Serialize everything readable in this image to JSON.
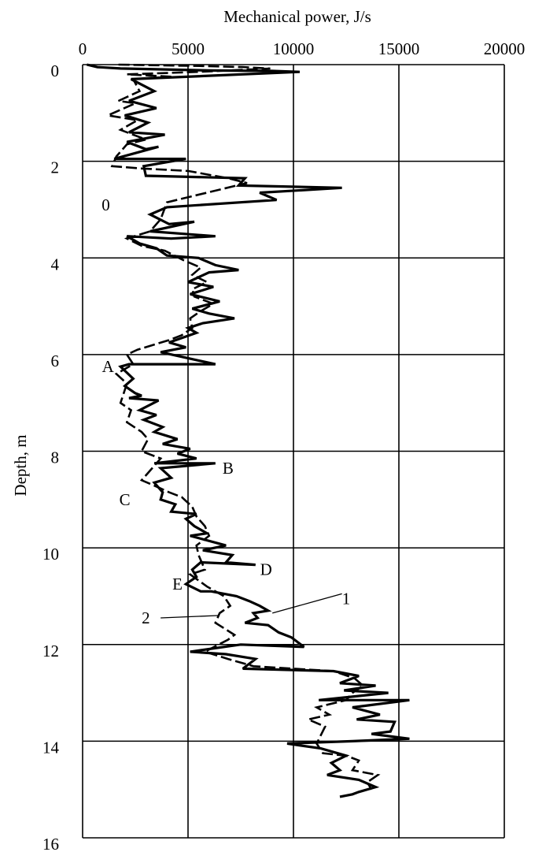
{
  "chart_data": {
    "type": "line",
    "title": "",
    "xlabel": "Mechanical power, J/s",
    "ylabel": "Depth, m",
    "xlim": [
      0,
      20000
    ],
    "ylim": [
      16,
      0
    ],
    "x_ticks": [
      0,
      5000,
      10000,
      15000,
      20000
    ],
    "y_ticks": [
      0,
      2,
      4,
      6,
      8,
      10,
      12,
      14,
      16
    ],
    "grid": true,
    "series": [
      {
        "name": "1",
        "style": "solid",
        "points": [
          [
            200,
            0
          ],
          [
            700,
            0.05
          ],
          [
            1800,
            0.08
          ],
          [
            6000,
            0.12
          ],
          [
            9000,
            0.13
          ],
          [
            10300,
            0.15
          ],
          [
            2300,
            0.3
          ],
          [
            3400,
            0.55
          ],
          [
            2200,
            0.75
          ],
          [
            3500,
            0.9
          ],
          [
            2000,
            1.05
          ],
          [
            3100,
            1.2
          ],
          [
            2200,
            1.4
          ],
          [
            3900,
            1.45
          ],
          [
            2100,
            1.6
          ],
          [
            3000,
            1.75
          ],
          [
            3600,
            1.7
          ],
          [
            1500,
            1.95
          ],
          [
            4900,
            1.95
          ],
          [
            2900,
            2.1
          ],
          [
            3000,
            2.3
          ],
          [
            7700,
            2.35
          ],
          [
            7400,
            2.5
          ],
          [
            12300,
            2.55
          ],
          [
            8400,
            2.65
          ],
          [
            9200,
            2.8
          ],
          [
            4000,
            2.95
          ],
          [
            3200,
            3.1
          ],
          [
            4100,
            3.3
          ],
          [
            5300,
            3.25
          ],
          [
            3200,
            3.45
          ],
          [
            6300,
            3.55
          ],
          [
            4200,
            3.6
          ],
          [
            2100,
            3.55
          ],
          [
            2700,
            3.7
          ],
          [
            3500,
            3.8
          ],
          [
            4000,
            3.95
          ],
          [
            5500,
            4.0
          ],
          [
            6300,
            4.15
          ],
          [
            7400,
            4.25
          ],
          [
            6000,
            4.3
          ],
          [
            5000,
            4.5
          ],
          [
            6200,
            4.6
          ],
          [
            5100,
            4.75
          ],
          [
            6500,
            4.9
          ],
          [
            5200,
            5.05
          ],
          [
            6000,
            5.15
          ],
          [
            7200,
            5.25
          ],
          [
            5700,
            5.35
          ],
          [
            5000,
            5.45
          ],
          [
            5400,
            5.55
          ],
          [
            4100,
            5.75
          ],
          [
            4900,
            5.85
          ],
          [
            3700,
            5.95
          ],
          [
            6300,
            6.2
          ],
          [
            2200,
            6.2
          ],
          [
            1800,
            6.25
          ],
          [
            2400,
            6.5
          ],
          [
            2000,
            6.65
          ],
          [
            2500,
            6.8
          ],
          [
            2800,
            6.85
          ],
          [
            2200,
            6.9
          ],
          [
            3600,
            6.95
          ],
          [
            2700,
            7.15
          ],
          [
            3500,
            7.25
          ],
          [
            2900,
            7.35
          ],
          [
            3800,
            7.5
          ],
          [
            3400,
            7.6
          ],
          [
            4500,
            7.75
          ],
          [
            3800,
            7.85
          ],
          [
            5100,
            7.95
          ],
          [
            4500,
            8.05
          ],
          [
            5400,
            8.15
          ],
          [
            3400,
            8.25
          ],
          [
            6300,
            8.25
          ],
          [
            3700,
            8.35
          ],
          [
            4200,
            8.55
          ],
          [
            3400,
            8.65
          ],
          [
            3800,
            8.85
          ],
          [
            3700,
            9.0
          ],
          [
            4400,
            9.1
          ],
          [
            4200,
            9.25
          ],
          [
            5400,
            9.3
          ],
          [
            4900,
            9.4
          ],
          [
            5300,
            9.55
          ],
          [
            5900,
            9.7
          ],
          [
            5100,
            9.75
          ],
          [
            6800,
            9.95
          ],
          [
            5700,
            10.05
          ],
          [
            7100,
            10.15
          ],
          [
            6800,
            10.3
          ],
          [
            8200,
            10.35
          ],
          [
            5600,
            10.3
          ],
          [
            5200,
            10.45
          ],
          [
            5400,
            10.6
          ],
          [
            4900,
            10.75
          ],
          [
            5600,
            10.9
          ],
          [
            6100,
            10.9
          ],
          [
            7300,
            11.0
          ],
          [
            7900,
            11.1
          ],
          [
            8400,
            11.2
          ],
          [
            8800,
            11.3
          ],
          [
            8100,
            11.35
          ],
          [
            8300,
            11.45
          ],
          [
            7700,
            11.55
          ],
          [
            8800,
            11.6
          ],
          [
            9300,
            11.75
          ],
          [
            9900,
            11.85
          ],
          [
            10500,
            12.05
          ],
          [
            7500,
            12.0
          ],
          [
            5100,
            12.15
          ],
          [
            6800,
            12.2
          ],
          [
            8200,
            12.3
          ],
          [
            7600,
            12.5
          ],
          [
            11900,
            12.55
          ],
          [
            13100,
            12.65
          ],
          [
            12200,
            12.8
          ],
          [
            13900,
            12.85
          ],
          [
            12400,
            12.95
          ],
          [
            14500,
            13.0
          ],
          [
            11200,
            13.15
          ],
          [
            15500,
            13.15
          ],
          [
            12800,
            13.3
          ],
          [
            14100,
            13.45
          ],
          [
            13000,
            13.55
          ],
          [
            14800,
            13.6
          ],
          [
            14600,
            13.8
          ],
          [
            13700,
            13.85
          ],
          [
            15500,
            13.95
          ],
          [
            12800,
            14.0
          ],
          [
            9700,
            14.05
          ],
          [
            11300,
            14.15
          ],
          [
            12500,
            14.3
          ],
          [
            11800,
            14.45
          ],
          [
            12200,
            14.6
          ],
          [
            11600,
            14.7
          ],
          [
            13100,
            14.8
          ],
          [
            13900,
            14.95
          ],
          [
            13100,
            15.05
          ],
          [
            12800,
            15.1
          ],
          [
            12200,
            15.15
          ]
        ]
      },
      {
        "name": "2",
        "style": "dashed",
        "points": [
          [
            1700,
            0
          ],
          [
            5700,
            0.03
          ],
          [
            7600,
            0.05
          ],
          [
            8900,
            0.08
          ],
          [
            5500,
            0.15
          ],
          [
            2100,
            0.2
          ],
          [
            4200,
            0.25
          ],
          [
            2400,
            0.3
          ],
          [
            2700,
            0.55
          ],
          [
            1700,
            0.75
          ],
          [
            2500,
            0.8
          ],
          [
            1200,
            1.05
          ],
          [
            2600,
            1.15
          ],
          [
            1800,
            1.35
          ],
          [
            3000,
            1.55
          ],
          [
            2100,
            1.65
          ],
          [
            1600,
            1.9
          ],
          [
            1400,
            2.1
          ],
          [
            2800,
            2.15
          ],
          [
            5000,
            2.2
          ],
          [
            6900,
            2.35
          ],
          [
            7800,
            2.45
          ],
          [
            4000,
            2.85
          ],
          [
            3700,
            3.2
          ],
          [
            3200,
            3.45
          ],
          [
            2100,
            3.6
          ],
          [
            2800,
            3.75
          ],
          [
            3900,
            3.85
          ],
          [
            4800,
            4.05
          ],
          [
            5600,
            4.2
          ],
          [
            5200,
            4.35
          ],
          [
            5900,
            4.5
          ],
          [
            5200,
            4.65
          ],
          [
            5300,
            4.8
          ],
          [
            6200,
            4.95
          ],
          [
            5600,
            5.1
          ],
          [
            5100,
            5.25
          ],
          [
            5200,
            5.45
          ],
          [
            4700,
            5.6
          ],
          [
            4100,
            5.7
          ],
          [
            2600,
            5.9
          ],
          [
            2100,
            6.0
          ],
          [
            2400,
            6.2
          ],
          [
            1600,
            6.4
          ],
          [
            2100,
            6.6
          ],
          [
            1800,
            7.0
          ],
          [
            2300,
            7.15
          ],
          [
            2100,
            7.4
          ],
          [
            2800,
            7.6
          ],
          [
            3100,
            7.75
          ],
          [
            2800,
            8.0
          ],
          [
            3700,
            8.15
          ],
          [
            3100,
            8.45
          ],
          [
            2800,
            8.6
          ],
          [
            3600,
            8.75
          ],
          [
            4100,
            8.85
          ],
          [
            4700,
            8.95
          ],
          [
            5200,
            9.15
          ],
          [
            5400,
            9.35
          ],
          [
            5800,
            9.55
          ],
          [
            6000,
            9.75
          ],
          [
            5400,
            9.95
          ],
          [
            5500,
            10.15
          ],
          [
            5800,
            10.45
          ],
          [
            5100,
            10.55
          ],
          [
            5900,
            10.8
          ],
          [
            6700,
            11.0
          ],
          [
            7000,
            11.2
          ],
          [
            6500,
            11.35
          ],
          [
            6300,
            11.55
          ],
          [
            7200,
            11.8
          ],
          [
            6900,
            11.9
          ],
          [
            5800,
            12.15
          ],
          [
            6900,
            12.3
          ],
          [
            8100,
            12.45
          ],
          [
            10000,
            12.5
          ],
          [
            11900,
            12.55
          ],
          [
            12900,
            12.7
          ],
          [
            13300,
            12.85
          ],
          [
            12800,
            13.0
          ],
          [
            12500,
            13.15
          ],
          [
            11100,
            13.3
          ],
          [
            11700,
            13.45
          ],
          [
            10700,
            13.55
          ],
          [
            11500,
            13.7
          ],
          [
            11100,
            14.05
          ],
          [
            11400,
            14.25
          ],
          [
            12500,
            14.3
          ],
          [
            13100,
            14.4
          ],
          [
            12800,
            14.6
          ],
          [
            14000,
            14.7
          ],
          [
            13500,
            14.85
          ],
          [
            13700,
            15.0
          ]
        ]
      }
    ],
    "annotations": [
      {
        "text": "0",
        "x": 1100,
        "y": 2.9
      },
      {
        "text": "A",
        "x": 1200,
        "y": 6.25
      },
      {
        "text": "B",
        "x": 6900,
        "y": 8.35
      },
      {
        "text": "C",
        "x": 2000,
        "y": 9.0
      },
      {
        "text": "D",
        "x": 8700,
        "y": 10.45
      },
      {
        "text": "E",
        "x": 4500,
        "y": 10.75
      },
      {
        "text": "1",
        "x": 12500,
        "y": 11.05
      },
      {
        "text": "2",
        "x": 3000,
        "y": 11.45
      }
    ],
    "leaders": [
      {
        "from": [
          9000,
          11.35
        ],
        "to": [
          12300,
          10.95
        ]
      },
      {
        "from": [
          3700,
          11.45
        ],
        "to": [
          6400,
          11.4
        ]
      }
    ]
  }
}
